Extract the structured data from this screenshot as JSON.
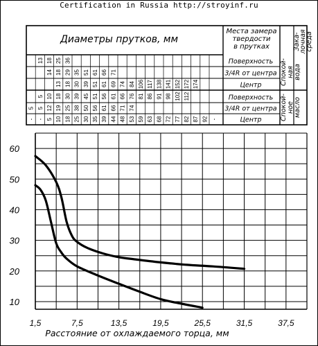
{
  "header_text": "Certification in Russia http://stroyinf.ru",
  "table": {
    "title": "Диаметры прутков, мм",
    "measure_header_lines": [
      "Места замера",
      "твердости",
      "в прутках"
    ],
    "media_header_lines": [
      "Зака-",
      "лочная",
      "среда"
    ],
    "row_labels": [
      "Поверхность",
      "3/4R от центра",
      "Центр",
      "Поверхность",
      "3/4R от центра",
      "Центр"
    ],
    "group_labels": [
      [
        "Спокой-",
        "ная",
        "вода"
      ],
      [
        "Спокой-",
        "ное",
        "масло"
      ]
    ],
    "columns": [
      [
        "",
        "",
        "",
        "",
        "5",
        "-"
      ],
      [
        "13",
        "",
        "",
        "5",
        "5",
        "-"
      ],
      [
        "18",
        "14",
        "",
        "10",
        "12",
        "5"
      ],
      [
        "25",
        "18",
        "13",
        "18",
        "19",
        "10"
      ],
      [
        "36",
        "29",
        "18",
        "30",
        "25",
        "18"
      ],
      [
        "",
        "35",
        "30",
        "39",
        "38",
        "25"
      ],
      [
        "",
        "51",
        "39",
        "45",
        "50",
        "30"
      ],
      [
        "",
        "61",
        "51",
        "51",
        "56",
        "35"
      ],
      [
        "",
        "66",
        "61",
        "56",
        "61",
        "39"
      ],
      [
        "",
        "71",
        "69",
        "61",
        "66",
        "44"
      ],
      [
        "",
        "",
        "74",
        "66",
        "71",
        "48"
      ],
      [
        "",
        "",
        "84",
        "76",
        "74",
        "53"
      ],
      [
        "",
        "",
        "106",
        "81",
        "",
        "59"
      ],
      [
        "",
        "",
        "117",
        "86",
        "",
        "63"
      ],
      [
        "",
        "",
        "138",
        "91",
        "",
        "68"
      ],
      [
        "",
        "",
        "141",
        "98",
        "",
        "72"
      ],
      [
        "",
        "",
        "152",
        "102",
        "",
        "77"
      ],
      [
        "",
        "",
        "172",
        "112",
        "",
        "82"
      ],
      [
        "",
        "",
        "174",
        "",
        "",
        "87"
      ],
      [
        "",
        "",
        "",
        "",
        "",
        "92"
      ],
      [
        "",
        "",
        "",
        "",
        "",
        "-"
      ]
    ]
  },
  "chart_data": {
    "type": "line",
    "xlabel": "Расстояние от охлаждаемого торца, мм",
    "ylabel": "",
    "xlim": [
      1.5,
      40.5
    ],
    "ylim": [
      7.5,
      65
    ],
    "x_ticks": [
      "1,5",
      "7,5",
      "13,5",
      "19,5",
      "25,5",
      "31,5",
      "37,5"
    ],
    "y_ticks": [
      "10",
      "20",
      "30",
      "40",
      "50",
      "60"
    ],
    "x_tick_values": [
      1.5,
      7.5,
      13.5,
      19.5,
      25.5,
      31.5,
      37.5
    ],
    "y_tick_values": [
      10,
      20,
      30,
      40,
      50,
      60
    ],
    "grid": true,
    "series": [
      {
        "x": [
          1.5,
          3.0,
          4.5,
          5.25,
          6.0,
          6.75,
          7.5,
          9.0,
          11.25,
          13.5,
          15.75,
          19.5,
          23.25,
          27.0,
          31.5
        ],
        "y": [
          57.5,
          54.5,
          49.0,
          44.0,
          36.0,
          31.5,
          29.5,
          27.5,
          25.7,
          24.5,
          23.8,
          22.8,
          22.0,
          21.5,
          20.7
        ]
      },
      {
        "x": [
          1.5,
          2.25,
          3.0,
          3.75,
          4.5,
          5.25,
          6.0,
          7.5,
          10.5,
          13.5,
          16.5,
          19.5,
          22.5,
          25.5
        ],
        "y": [
          48.0,
          46.5,
          43.0,
          36.0,
          29.0,
          26.0,
          24.0,
          21.5,
          18.5,
          15.8,
          13.2,
          10.8,
          9.3,
          8.0
        ]
      }
    ]
  }
}
